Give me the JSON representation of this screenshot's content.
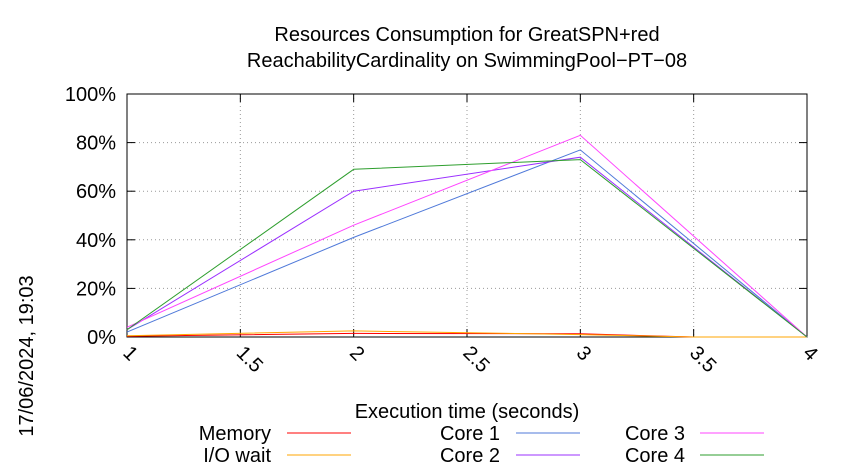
{
  "chart_data": {
    "type": "line",
    "title": "Resources Consumption for GreatSPN+red",
    "subtitle": "ReachabilityCardinality on SwimmingPool−PT−08",
    "xlabel": "Execution time (seconds)",
    "ylabel": "",
    "side_label": "17/06/2024, 19:03",
    "xlim": [
      1,
      4
    ],
    "ylim": [
      0,
      100
    ],
    "xticks": [
      1,
      1.5,
      2,
      2.5,
      3,
      3.5,
      4
    ],
    "xtick_labels": [
      "1",
      "1.5",
      "2",
      "2.5",
      "3",
      "3.5",
      "4"
    ],
    "yticks": [
      0,
      20,
      40,
      60,
      80,
      100
    ],
    "ytick_labels": [
      "0%",
      "20%",
      "40%",
      "60%",
      "80%",
      "100%"
    ],
    "grid": true,
    "legend_position": "bottom",
    "series": [
      {
        "name": "Memory",
        "color": "#ff0000",
        "x": [
          1,
          2,
          3,
          3.5,
          4
        ],
        "y": [
          0.3,
          1.5,
          1.3,
          0,
          0
        ]
      },
      {
        "name": "I/O wait",
        "color": "#ffa500",
        "x": [
          1,
          2,
          3,
          3.5,
          4
        ],
        "y": [
          0.5,
          2.5,
          1.0,
          0,
          0
        ]
      },
      {
        "name": "Core 1",
        "color": "#4f79d9",
        "x": [
          1,
          2,
          3,
          4
        ],
        "y": [
          2,
          41,
          77,
          0
        ]
      },
      {
        "name": "Core 2",
        "color": "#9b30ff",
        "x": [
          1,
          2,
          3,
          4
        ],
        "y": [
          3,
          60,
          74,
          0
        ]
      },
      {
        "name": "Core 3",
        "color": "#ff44ff",
        "x": [
          1,
          2,
          3,
          4
        ],
        "y": [
          4,
          46,
          83,
          0
        ]
      },
      {
        "name": "Core 4",
        "color": "#2e9e2e",
        "x": [
          1,
          2,
          3,
          4
        ],
        "y": [
          3,
          69,
          73,
          0
        ]
      }
    ]
  }
}
